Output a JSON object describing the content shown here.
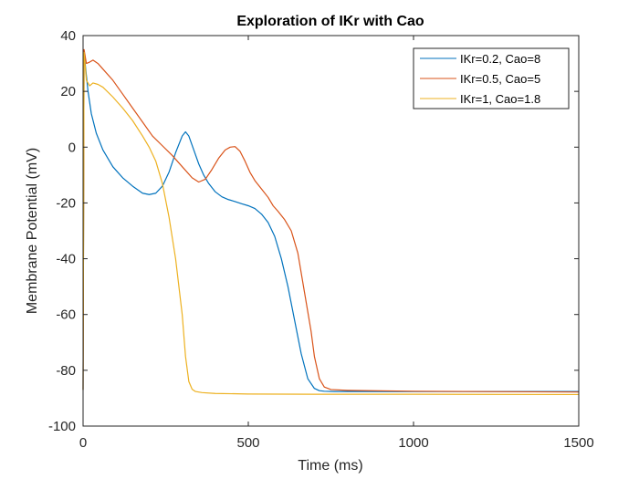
{
  "chart_data": {
    "type": "line",
    "title": "Exploration of IKr with Cao",
    "xlabel": "Time (ms)",
    "ylabel": "Membrane Potential (mV)",
    "xlim": [
      0,
      1500
    ],
    "ylim": [
      -100,
      40
    ],
    "xticks": [
      0,
      500,
      1000,
      1500
    ],
    "yticks": [
      -100,
      -80,
      -60,
      -40,
      -20,
      0,
      20,
      40
    ],
    "xtick_labels": [
      "0",
      "500",
      "1000",
      "1500"
    ],
    "ytick_labels": [
      "-100",
      "-80",
      "-60",
      "-40",
      "-20",
      "0",
      "20",
      "40"
    ],
    "grid": false,
    "legend_position": "top-right",
    "series": [
      {
        "name": "IKr=0.2, Cao=8",
        "color": "#0072BD",
        "x": [
          0,
          3,
          8,
          15,
          25,
          40,
          60,
          90,
          120,
          150,
          180,
          200,
          220,
          240,
          260,
          280,
          300,
          310,
          320,
          335,
          350,
          365,
          380,
          400,
          420,
          440,
          460,
          480,
          500,
          520,
          540,
          560,
          580,
          600,
          620,
          640,
          660,
          680,
          700,
          715,
          730,
          760,
          800,
          1000,
          1500
        ],
        "y": [
          -87,
          34,
          28,
          20,
          12,
          5,
          -1,
          -7,
          -11,
          -14,
          -16.5,
          -17,
          -16.5,
          -14,
          -9,
          -2,
          4,
          5.5,
          4,
          -1,
          -6,
          -10,
          -13,
          -16,
          -17.8,
          -18.8,
          -19.5,
          -20.3,
          -21,
          -22,
          -24,
          -27,
          -32,
          -40,
          -50,
          -62,
          -74,
          -83,
          -86.5,
          -87.3,
          -87.5,
          -87.6,
          -87.6,
          -87.6,
          -87.6
        ]
      },
      {
        "name": "IKr=0.5, Cao=5",
        "color": "#D95319",
        "x": [
          0,
          3,
          10,
          20,
          30,
          45,
          60,
          90,
          120,
          150,
          180,
          210,
          240,
          270,
          300,
          330,
          350,
          370,
          390,
          410,
          430,
          445,
          460,
          475,
          490,
          505,
          520,
          540,
          560,
          575,
          590,
          610,
          630,
          650,
          670,
          690,
          700,
          715,
          730,
          750,
          800,
          1000,
          1500
        ],
        "y": [
          -87,
          35,
          30,
          30.5,
          31.2,
          30,
          28,
          24,
          19,
          14,
          9,
          4,
          0.5,
          -3,
          -7,
          -11,
          -12.5,
          -11.5,
          -8,
          -4,
          -1,
          0,
          0.2,
          -1.5,
          -5,
          -9,
          -12,
          -15,
          -18,
          -21,
          -23,
          -26,
          -30,
          -38,
          -52,
          -66,
          -75,
          -83,
          -86,
          -86.9,
          -87.2,
          -87.5,
          -87.8
        ]
      },
      {
        "name": "IKr=1, Cao=1.8",
        "color": "#EDB120",
        "x": [
          0,
          3,
          10,
          20,
          30,
          45,
          60,
          90,
          120,
          150,
          180,
          200,
          220,
          240,
          260,
          280,
          300,
          310,
          320,
          330,
          340,
          360,
          400,
          500,
          700,
          1000,
          1500
        ],
        "y": [
          -87,
          34,
          24,
          22,
          23,
          22.5,
          21.5,
          18,
          14,
          9.5,
          4,
          0,
          -5,
          -13,
          -25,
          -40,
          -60,
          -75,
          -84,
          -86.8,
          -87.6,
          -88,
          -88.3,
          -88.5,
          -88.6,
          -88.6,
          -88.7
        ]
      }
    ]
  }
}
